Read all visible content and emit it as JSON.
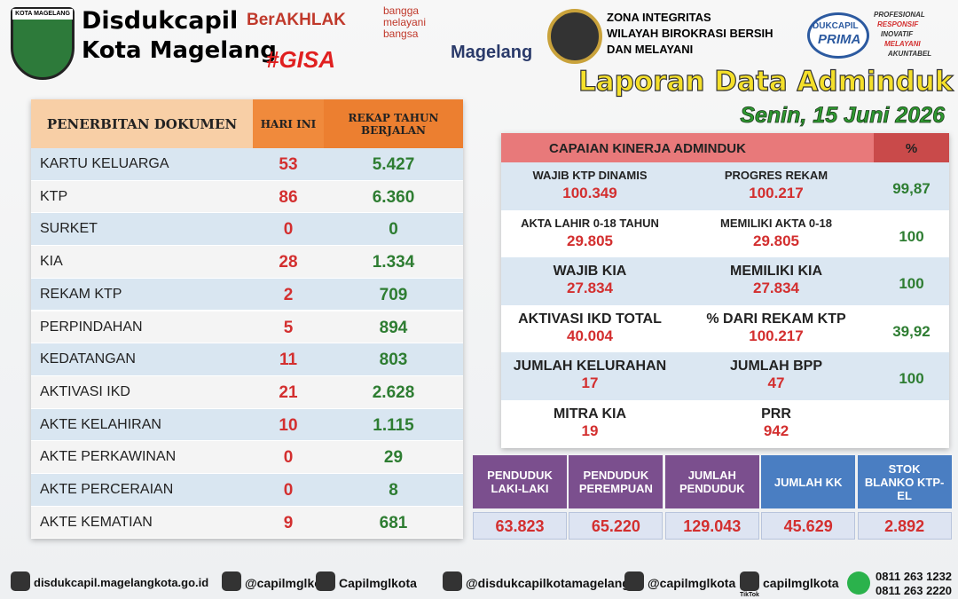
{
  "header": {
    "shield_label": "KOTA MAGELANG",
    "org_name": [
      "Disdukcapil",
      "Kota Magelang"
    ],
    "berakhlak": "BerAKHLAK",
    "bangga": "bangga melayani bangsa",
    "gisa": "#GISA",
    "city_logo": "Magelang",
    "zona_integritas": [
      "ZONA INTEGRITAS",
      "WILAYAH BIROKRASI BERSIH",
      "DAN MELAYANI"
    ],
    "prima": [
      "DUKCAPIL",
      "PRIMA"
    ],
    "prima_values": [
      "PROFESIONAL",
      "RESPONSIF",
      "INOVATIF",
      "MELAYANI",
      "AKUNTABEL"
    ],
    "title": "Laporan Data Adminduk",
    "date": "Senin, 15 Juni 2026"
  },
  "documents": {
    "headers": [
      "PENERBITAN DOKUMEN",
      "HARI INI",
      "REKAP TAHUN BERJALAN"
    ],
    "rows": [
      [
        "KARTU KELUARGA",
        53,
        "5.427"
      ],
      [
        "KTP",
        86,
        "6.360"
      ],
      [
        "SURKET",
        0,
        0
      ],
      [
        "KIA",
        28,
        "1.334"
      ],
      [
        "REKAM KTP",
        2,
        709
      ],
      [
        "PERPINDAHAN",
        5,
        894
      ],
      [
        "KEDATANGAN",
        11,
        803
      ],
      [
        "AKTIVASI IKD",
        21,
        "2.628"
      ],
      [
        "AKTE KELAHIRAN",
        10,
        "1.115"
      ],
      [
        "AKTE PERKAWINAN",
        0,
        29
      ],
      [
        "AKTE PERCERAIAN",
        0,
        8
      ],
      [
        "AKTE KEMATIAN",
        9,
        681
      ]
    ]
  },
  "performance": {
    "headers": [
      "CAPAIAN KINERJA ADMINDUK",
      "%"
    ],
    "rows": [
      {
        "left_label": "WAJIB KTP DINAMIS",
        "left_value": "100.349",
        "right_label": "PROGRES REKAM",
        "right_value": "100.217",
        "percent": "99,87"
      },
      {
        "left_label": "AKTA LAHIR 0-18 TAHUN",
        "left_value": "29.805",
        "right_label": "MEMILIKI AKTA 0-18",
        "right_value": "29.805",
        "percent": 100
      },
      {
        "left_label": "WAJIB KIA",
        "left_value": "27.834",
        "right_label": "MEMILIKI KIA",
        "right_value": "27.834",
        "percent": 100
      },
      {
        "left_label": "AKTIVASI IKD TOTAL",
        "left_value": "40.004",
        "right_label": "% DARI REKAM KTP",
        "right_value": "100.217",
        "percent": "39,92"
      },
      {
        "left_label": "JUMLAH KELURAHAN",
        "left_value": 17,
        "right_label": "JUMLAH BPP",
        "right_value": 47,
        "percent": 100
      },
      {
        "left_label": "MITRA KIA",
        "left_value": 19,
        "right_label": "PRR",
        "right_value": 942
      }
    ]
  },
  "population": {
    "headers": [
      "PENDUDUK LAKI-LAKI",
      "PENDUDUK PEREMPUAN",
      "JUMLAH PENDUDUK",
      "JUMLAH KK",
      "STOK BLANKO KTP-EL"
    ],
    "values": [
      "63.823",
      "65.220",
      "129.043",
      "45.629",
      "2.892"
    ]
  },
  "footer": {
    "website": "disdukcapil.magelangkota.go.id",
    "instagram": "@capilmglkota",
    "facebook": "Capilmglkota",
    "youtube": "@disdukcapilkotamagelang",
    "x": "@capilmglkota",
    "tiktok": "capilmglkota",
    "tiktok_label": "TikTok",
    "whatsapp": [
      "0811 263 1232",
      "0811 263 2220"
    ]
  }
}
